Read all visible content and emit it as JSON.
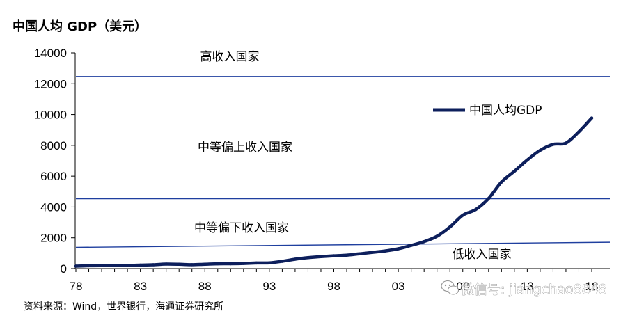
{
  "header": {
    "title": "中国人均 GDP（美元）"
  },
  "footer": {
    "source": "资料来源：Wind，世界银行，海通证券研究所"
  },
  "watermark": {
    "text": "微信号: jiangchao8848",
    "icon": "wechat-icon"
  },
  "colors": {
    "series": "#0d1f5c",
    "threshold": "#1f3f9f",
    "axis": "#000000"
  },
  "chart_data": {
    "type": "line",
    "title": "中国人均 GDP（美元）",
    "xlabel": "",
    "ylabel": "",
    "xlim": [
      1978,
      2018
    ],
    "ylim": [
      0,
      14000
    ],
    "yticks": [
      0,
      2000,
      4000,
      6000,
      8000,
      10000,
      12000,
      14000
    ],
    "xticks": [
      {
        "value": 1978,
        "label": "78"
      },
      {
        "value": 1983,
        "label": "83"
      },
      {
        "value": 1988,
        "label": "88"
      },
      {
        "value": 1993,
        "label": "93"
      },
      {
        "value": 1998,
        "label": "98"
      },
      {
        "value": 2003,
        "label": "03"
      },
      {
        "value": 2008,
        "label": "08"
      },
      {
        "value": 2013,
        "label": "13"
      },
      {
        "value": 2018,
        "label": "18"
      }
    ],
    "grid": false,
    "legend": "top-right",
    "series": [
      {
        "name": "中国人均GDP",
        "x": [
          1978,
          1979,
          1980,
          1981,
          1982,
          1983,
          1984,
          1985,
          1986,
          1987,
          1988,
          1989,
          1990,
          1991,
          1992,
          1993,
          1994,
          1995,
          1996,
          1997,
          1998,
          1999,
          2000,
          2001,
          2002,
          2003,
          2004,
          2005,
          2006,
          2007,
          2008,
          2009,
          2010,
          2011,
          2012,
          2013,
          2014,
          2015,
          2016,
          2017,
          2018
        ],
        "values": [
          156,
          183,
          195,
          197,
          203,
          225,
          250,
          294,
          281,
          252,
          284,
          311,
          317,
          333,
          366,
          377,
          473,
          610,
          709,
          781,
          829,
          873,
          959,
          1053,
          1148,
          1288,
          1508,
          1753,
          2099,
          2694,
          3468,
          3832,
          4550,
          5618,
          6317,
          7051,
          7679,
          8067,
          8148,
          8879,
          9771
        ]
      }
    ],
    "reference_lines": [
      {
        "label": "高收入国家",
        "x": [
          1978,
          2018
        ],
        "values": [
          12475,
          12475
        ]
      },
      {
        "label": "中等偏上收入国家",
        "x": [
          1978,
          2018
        ],
        "values": [
          4535,
          4535
        ]
      },
      {
        "label": "中等偏下收入国家",
        "x": [
          1978,
          2018
        ],
        "values": [
          1380,
          1710
        ]
      }
    ],
    "annotations": [
      "高收入国家",
      "中等偏上收入国家",
      "中等偏下收入国家",
      "低收入国家"
    ]
  }
}
